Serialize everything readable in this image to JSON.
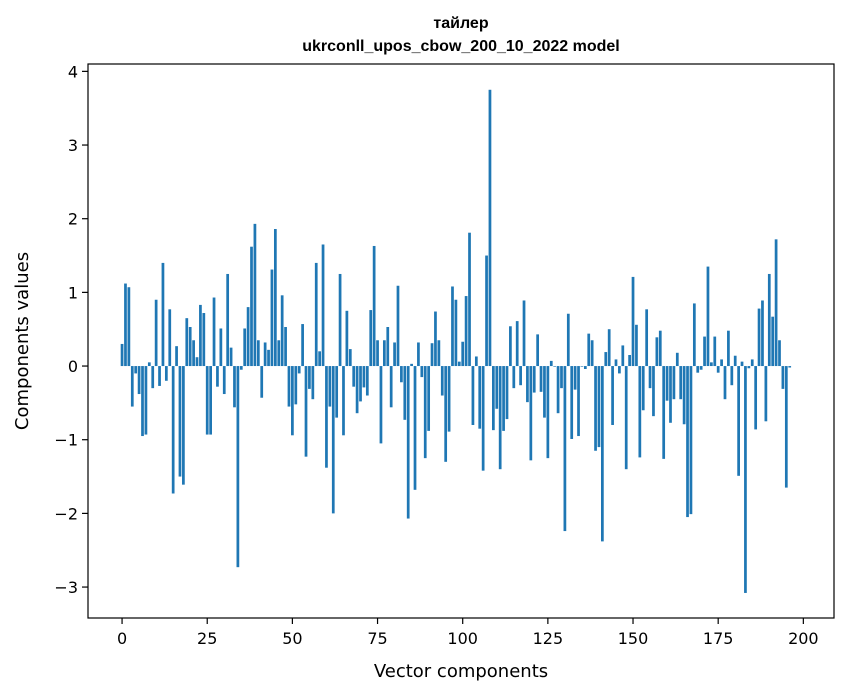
{
  "chart_data": {
    "type": "bar",
    "title_line1": "тайлер",
    "title_line2": "ukrconll_upos_cbow_200_10_2022 model",
    "xlabel": "Vector components",
    "ylabel": "Components values",
    "xlim": [
      -10,
      209
    ],
    "ylim": [
      -3.42,
      4.1
    ],
    "xticks": [
      0,
      25,
      50,
      75,
      100,
      125,
      150,
      175,
      200
    ],
    "yticks": [
      -3,
      -2,
      -1,
      0,
      1,
      2,
      3,
      4
    ],
    "xtick_labels": [
      "0",
      "25",
      "50",
      "75",
      "100",
      "125",
      "150",
      "175",
      "200"
    ],
    "ytick_labels": [
      "−3",
      "−2",
      "−1",
      "0",
      "1",
      "2",
      "3",
      "4"
    ],
    "bar_color": "#1f77b4",
    "values": [
      0.3,
      1.12,
      1.07,
      -0.55,
      -0.1,
      -0.38,
      -0.95,
      -0.93,
      0.05,
      -0.3,
      0.9,
      -0.27,
      1.4,
      -0.2,
      0.77,
      -1.73,
      0.27,
      -1.5,
      -1.61,
      0.65,
      0.53,
      0.35,
      0.12,
      0.83,
      0.72,
      -0.93,
      -0.93,
      0.93,
      -0.28,
      0.51,
      -0.38,
      1.25,
      0.25,
      -0.56,
      -2.73,
      -0.05,
      0.51,
      0.8,
      1.62,
      1.93,
      0.35,
      -0.43,
      0.32,
      0.22,
      1.31,
      1.86,
      0.35,
      0.96,
      0.53,
      -0.55,
      -0.94,
      -0.52,
      -0.1,
      0.57,
      -1.23,
      -0.31,
      -0.45,
      1.4,
      0.2,
      1.65,
      -1.38,
      -0.55,
      -2.0,
      -0.7,
      1.25,
      -0.94,
      0.75,
      0.23,
      -0.28,
      -0.64,
      -0.48,
      -0.29,
      -0.4,
      0.76,
      1.63,
      0.35,
      -1.05,
      0.35,
      0.53,
      -0.56,
      0.32,
      1.09,
      -0.22,
      -0.73,
      -2.07,
      0.03,
      -1.68,
      0.32,
      -0.15,
      -1.25,
      -0.88,
      0.31,
      0.74,
      0.35,
      -0.4,
      -1.3,
      -0.89,
      1.08,
      0.9,
      0.06,
      0.33,
      0.95,
      1.81,
      -0.8,
      0.13,
      -0.85,
      -1.42,
      1.5,
      3.75,
      -0.87,
      -0.58,
      -1.4,
      -0.88,
      -0.72,
      0.54,
      -0.3,
      0.61,
      -0.26,
      0.89,
      -0.49,
      -1.28,
      -0.36,
      0.43,
      -0.35,
      -0.7,
      -1.25,
      0.07,
      0.0,
      -0.64,
      -0.3,
      -2.24,
      0.71,
      -0.99,
      -0.32,
      -0.95,
      0.0,
      -0.04,
      0.44,
      0.35,
      -1.15,
      -1.1,
      -2.38,
      0.19,
      0.5,
      -0.8,
      0.09,
      -0.1,
      0.28,
      -1.4,
      0.15,
      1.21,
      0.56,
      -1.24,
      -0.6,
      0.77,
      -0.3,
      -0.68,
      0.39,
      0.48,
      -1.26,
      -0.47,
      -0.77,
      -0.45,
      0.18,
      -0.45,
      -0.79,
      -2.05,
      -2.01,
      0.85,
      -0.09,
      -0.05,
      0.4,
      1.35,
      0.05,
      0.4,
      -0.09,
      0.09,
      -0.45,
      0.48,
      -0.26,
      0.14,
      -1.49,
      0.06,
      -3.08,
      -0.03,
      0.09,
      -0.86,
      0.78,
      0.89,
      -0.75,
      1.25,
      0.67,
      1.72,
      0.35,
      -0.31,
      -1.65,
      -0.02
    ]
  }
}
